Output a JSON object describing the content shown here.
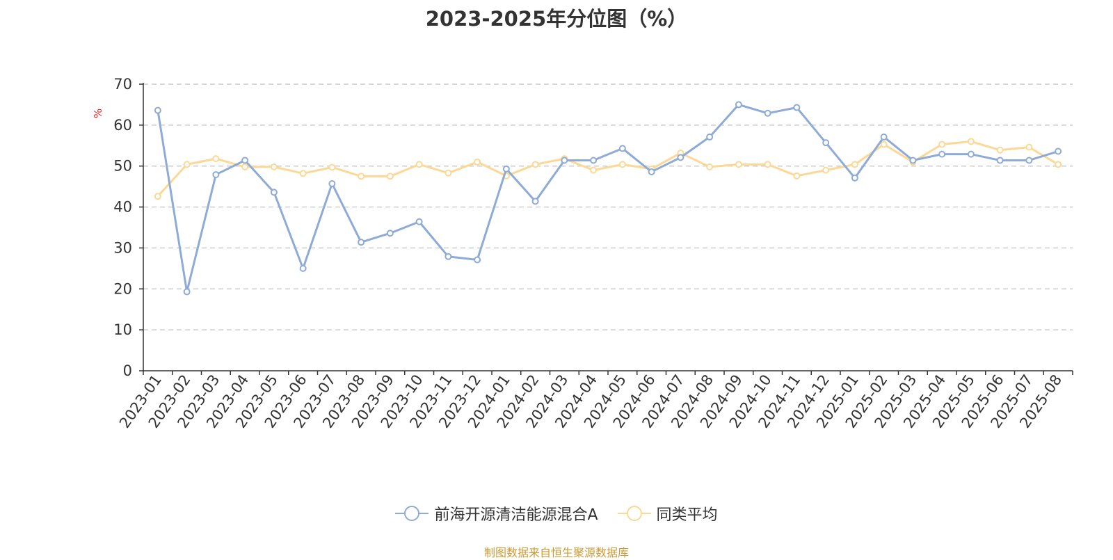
{
  "chart_data": {
    "type": "line",
    "title": "2023-2025年分位图（%）",
    "ylabel": "%",
    "ylim": [
      0,
      70
    ],
    "yticks": [
      0,
      10,
      20,
      30,
      40,
      50,
      60,
      70
    ],
    "grid": true,
    "legend_position": "bottom",
    "categories": [
      "2023-01",
      "2023-02",
      "2023-03",
      "2023-04",
      "2023-05",
      "2023-06",
      "2023-07",
      "2023-08",
      "2023-09",
      "2023-10",
      "2023-11",
      "2023-12",
      "2024-01",
      "2024-02",
      "2024-03",
      "2024-04",
      "2024-05",
      "2024-06",
      "2024-07",
      "2024-08",
      "2024-09",
      "2024-10",
      "2024-11",
      "2024-12",
      "2025-01",
      "2025-02",
      "2025-03",
      "2025-04",
      "2025-05",
      "2025-06",
      "2025-07",
      "2025-08"
    ],
    "series": [
      {
        "name": "前海开源清洁能源混合A",
        "color": "#8eabd8",
        "values": [
          63.6,
          19.3,
          47.9,
          51.4,
          43.6,
          25.0,
          45.7,
          31.4,
          33.6,
          36.4,
          27.9,
          27.1,
          49.3,
          41.4,
          51.4,
          51.4,
          54.3,
          48.6,
          52.1,
          57.1,
          65.0,
          62.9,
          64.3,
          55.7,
          47.1,
          57.1,
          51.4,
          52.9,
          52.9,
          51.4,
          51.4,
          53.6
        ]
      },
      {
        "name": "同类平均",
        "color": "#fbd896",
        "values": [
          42.6,
          50.4,
          51.8,
          49.8,
          49.8,
          48.2,
          49.7,
          47.5,
          47.5,
          50.4,
          48.3,
          51.0,
          47.6,
          50.4,
          51.8,
          49.0,
          50.4,
          49.3,
          53.2,
          49.8,
          50.4,
          50.4,
          47.6,
          49.0,
          50.4,
          55.3,
          51.0,
          55.3,
          56.0,
          53.9,
          54.6,
          50.4
        ]
      }
    ]
  },
  "footer": {
    "source": "制图数据来自恒生聚源数据库"
  }
}
